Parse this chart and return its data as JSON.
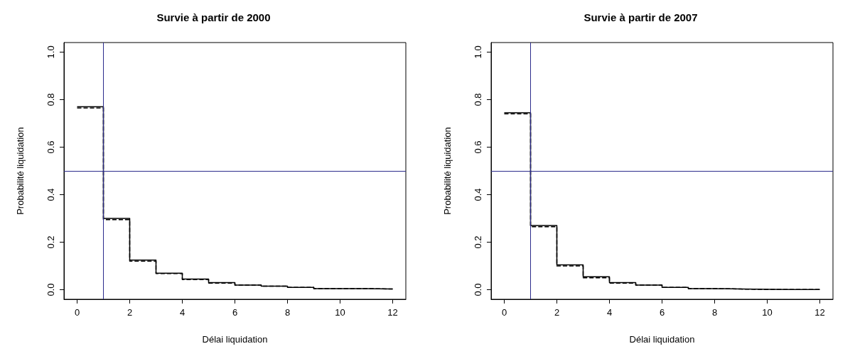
{
  "chart_data": [
    {
      "type": "step",
      "title": "Survie à partir de 2000",
      "xlabel": "Délai liquidation",
      "ylabel": "Probabilité liquidation",
      "x": [
        0,
        1,
        2,
        3,
        4,
        5,
        6,
        7,
        8,
        9,
        10,
        11,
        12
      ],
      "series": [
        {
          "color": "#000000",
          "line_style": "solid",
          "values": [
            0.77,
            0.3,
            0.125,
            0.07,
            0.045,
            0.03,
            0.02,
            0.015,
            0.01,
            0.005,
            0.005,
            0.003,
            0.003
          ]
        },
        {
          "color": "#000000",
          "line_style": "dashed",
          "values": [
            0.765,
            0.295,
            0.12,
            0.068,
            0.043,
            0.028,
            0.02,
            0.015,
            0.01,
            0.005,
            0.005,
            0.003,
            0.003
          ]
        }
      ],
      "xlim": [
        -0.5,
        12.5
      ],
      "xticks": [
        0,
        2,
        4,
        6,
        8,
        10,
        12
      ],
      "ylim": [
        -0.04,
        1.04
      ],
      "yticks": [
        {
          "value": 0,
          "label": "0.0"
        },
        {
          "value": 0.2,
          "label": "0.2"
        },
        {
          "value": 0.4,
          "label": "0.4"
        },
        {
          "value": 0.6,
          "label": "0.6"
        },
        {
          "value": 0.8,
          "label": "0.8"
        },
        {
          "value": 1,
          "label": "1.0"
        }
      ],
      "ref_lines": [
        {
          "axis": "x",
          "value": 1,
          "color": "#2b2b8c"
        },
        {
          "axis": "y",
          "value": 0.5,
          "color": "#2b2b8c"
        }
      ],
      "grid": false,
      "marker": "none"
    },
    {
      "type": "step",
      "title": "Survie à partir de 2007",
      "xlabel": "Délai liquidation",
      "ylabel": "Probabilité liquidation",
      "x": [
        0,
        1,
        2,
        3,
        4,
        5,
        6,
        7,
        8,
        9,
        10,
        11,
        12
      ],
      "series": [
        {
          "color": "#000000",
          "line_style": "solid",
          "values": [
            0.745,
            0.27,
            0.105,
            0.055,
            0.03,
            0.02,
            0.01,
            0.005,
            0.003,
            0.002,
            0.001,
            0.001,
            0.001
          ]
        },
        {
          "color": "#000000",
          "line_style": "dashed",
          "values": [
            0.74,
            0.265,
            0.1,
            0.05,
            0.028,
            0.02,
            0.01,
            0.005,
            0.003,
            0.001,
            0.001,
            0.001,
            0.001
          ]
        }
      ],
      "xlim": [
        -0.5,
        12.5
      ],
      "xticks": [
        0,
        2,
        4,
        6,
        8,
        10,
        12
      ],
      "ylim": [
        -0.04,
        1.04
      ],
      "yticks": [
        {
          "value": 0,
          "label": "0.0"
        },
        {
          "value": 0.2,
          "label": "0.2"
        },
        {
          "value": 0.4,
          "label": "0.4"
        },
        {
          "value": 0.6,
          "label": "0.6"
        },
        {
          "value": 0.8,
          "label": "0.8"
        },
        {
          "value": 1,
          "label": "1.0"
        }
      ],
      "ref_lines": [
        {
          "axis": "x",
          "value": 1,
          "color": "#2b2b8c"
        },
        {
          "axis": "y",
          "value": 0.5,
          "color": "#2b2b8c"
        }
      ],
      "grid": false,
      "marker": "none"
    }
  ]
}
